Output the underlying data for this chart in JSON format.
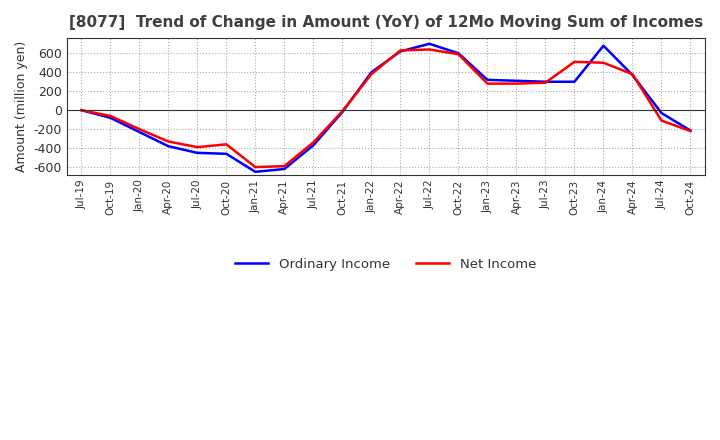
{
  "title": "[8077]  Trend of Change in Amount (YoY) of 12Mo Moving Sum of Incomes",
  "ylabel": "Amount (million yen)",
  "ylim": [
    -680,
    760
  ],
  "yticks": [
    -600,
    -400,
    -200,
    0,
    200,
    400,
    600
  ],
  "x_labels": [
    "Jul-19",
    "Oct-19",
    "Jan-20",
    "Apr-20",
    "Jul-20",
    "Oct-20",
    "Jan-21",
    "Apr-21",
    "Jul-21",
    "Oct-21",
    "Jan-22",
    "Apr-22",
    "Jul-22",
    "Oct-22",
    "Jan-23",
    "Apr-23",
    "Jul-23",
    "Oct-23",
    "Jan-24",
    "Apr-24",
    "Jul-24",
    "Oct-24"
  ],
  "ordinary_income": [
    0,
    -80,
    -230,
    -380,
    -450,
    -460,
    -650,
    -620,
    -370,
    -20,
    400,
    620,
    700,
    600,
    320,
    310,
    300,
    300,
    680,
    370,
    -30,
    -215
  ],
  "net_income": [
    0,
    -60,
    -200,
    -330,
    -390,
    -360,
    -600,
    -590,
    -340,
    -10,
    380,
    630,
    640,
    590,
    280,
    280,
    290,
    510,
    500,
    380,
    -110,
    -220
  ],
  "ordinary_color": "#0000ff",
  "net_color": "#ff0000",
  "background_color": "#ffffff",
  "grid_color": "#aaaaaa",
  "title_color": "#404040",
  "legend_labels": [
    "Ordinary Income",
    "Net Income"
  ]
}
